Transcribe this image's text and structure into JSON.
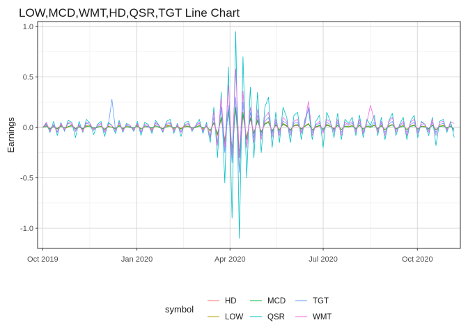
{
  "chart_data": {
    "type": "line",
    "title": "LOW,MCD,WMT,HD,QSR,TGT Line Chart",
    "xlabel": "",
    "ylabel": "Earnings",
    "x_range": [
      "2019-09-26",
      "2020-11-12"
    ],
    "ylim": [
      -1.2,
      1.05
    ],
    "x_ticks": [
      {
        "date": "2019-10-01",
        "label": "Oct 2019"
      },
      {
        "date": "2020-01-01",
        "label": "Jan 2020"
      },
      {
        "date": "2020-04-01",
        "label": "Apr 2020"
      },
      {
        "date": "2020-07-01",
        "label": "Jul 2020"
      },
      {
        "date": "2020-10-01",
        "label": "Oct 2020"
      }
    ],
    "y_ticks": [
      {
        "value": 1.0,
        "label": "1.0"
      },
      {
        "value": 0.5,
        "label": "0.5"
      },
      {
        "value": 0.0,
        "label": "0.0"
      },
      {
        "value": -0.5,
        "label": "-0.5"
      },
      {
        "value": -1.0,
        "label": "-1.0"
      }
    ],
    "grid": true,
    "legend_position": "bottom",
    "legend_title": "symbol",
    "date_start": "2019-10-01",
    "date_end": "2020-11-06",
    "series": [
      {
        "name": "HD",
        "color": "#F8766D",
        "values": [
          0.0,
          0.02,
          -0.01,
          0.01,
          -0.02,
          0.015,
          -0.005,
          0.01,
          0.025,
          -0.015,
          0.005,
          -0.02,
          0.01,
          0.02,
          -0.01,
          0.0,
          0.015,
          -0.025,
          0.01,
          0.005,
          -0.01,
          0.02,
          -0.015,
          0.01,
          0.0,
          -0.005,
          0.015,
          -0.02,
          0.01,
          0.005,
          -0.01,
          0.02,
          0.0,
          -0.015,
          0.01,
          0.025,
          -0.01,
          0.005,
          -0.02,
          0.01,
          0.015,
          -0.005,
          0.0,
          0.02,
          -0.01,
          0.01,
          -0.03,
          0.04,
          -0.06,
          0.08,
          -0.12,
          0.15,
          -0.2,
          0.18,
          -0.25,
          0.12,
          -0.1,
          0.08,
          -0.05,
          0.06,
          -0.04,
          0.03,
          0.05,
          -0.03,
          0.02,
          -0.02,
          0.03,
          0.01,
          -0.02,
          0.015,
          0.02,
          -0.01,
          0.01,
          0.03,
          -0.02,
          0.0,
          0.015,
          -0.015,
          0.02,
          0.01,
          -0.01,
          0.02,
          -0.02,
          0.01,
          0.005,
          0.015,
          -0.01,
          0.02,
          -0.015,
          0.01,
          0.0,
          0.02,
          -0.01,
          0.015,
          -0.02,
          0.01,
          0.025,
          -0.01,
          0.0,
          0.015,
          -0.02,
          0.01,
          0.02,
          -0.015,
          0.01,
          0.005,
          -0.01,
          0.02,
          -0.02,
          0.01,
          0.015,
          -0.005,
          0.01,
          -0.02
        ]
      },
      {
        "name": "LOW",
        "color": "#B79F00",
        "values": [
          0.0,
          0.015,
          -0.02,
          0.01,
          -0.01,
          0.02,
          -0.015,
          0.005,
          0.02,
          -0.01,
          0.01,
          -0.015,
          0.02,
          0.01,
          -0.02,
          0.005,
          0.01,
          -0.02,
          0.015,
          0.0,
          -0.015,
          0.02,
          -0.01,
          0.01,
          0.005,
          -0.01,
          0.02,
          -0.015,
          0.005,
          0.01,
          -0.02,
          0.015,
          0.005,
          -0.01,
          0.02,
          0.015,
          -0.015,
          0.01,
          -0.01,
          0.02,
          0.01,
          -0.015,
          0.005,
          0.02,
          -0.015,
          0.01,
          -0.04,
          0.05,
          -0.08,
          0.1,
          -0.15,
          0.18,
          -0.3,
          0.2,
          -0.42,
          0.15,
          -0.12,
          0.1,
          -0.06,
          0.08,
          -0.05,
          0.04,
          0.06,
          -0.04,
          0.03,
          -0.03,
          0.04,
          0.02,
          -0.03,
          0.02,
          0.03,
          -0.02,
          0.015,
          0.04,
          -0.03,
          0.01,
          0.02,
          -0.02,
          0.03,
          0.015,
          -0.015,
          0.025,
          -0.025,
          0.015,
          0.01,
          0.02,
          -0.015,
          0.025,
          -0.02,
          0.015,
          0.005,
          0.025,
          -0.015,
          0.02,
          -0.025,
          0.015,
          0.03,
          -0.015,
          0.005,
          0.02,
          -0.025,
          0.015,
          0.025,
          -0.02,
          0.015,
          0.01,
          -0.015,
          0.025,
          -0.025,
          0.015,
          0.02,
          -0.01,
          0.015,
          -0.02
        ]
      },
      {
        "name": "MCD",
        "color": "#00BA38",
        "values": [
          0.0,
          0.01,
          -0.01,
          0.005,
          -0.01,
          0.01,
          -0.005,
          0.01,
          0.015,
          -0.01,
          0.005,
          -0.01,
          0.01,
          0.015,
          -0.005,
          0.0,
          0.01,
          -0.015,
          0.005,
          0.005,
          -0.01,
          0.015,
          -0.01,
          0.005,
          0.0,
          -0.005,
          0.01,
          -0.015,
          0.005,
          0.005,
          -0.005,
          0.015,
          0.0,
          -0.01,
          0.005,
          0.015,
          -0.005,
          0.005,
          -0.015,
          0.005,
          0.01,
          -0.005,
          0.0,
          0.015,
          -0.005,
          0.005,
          -0.03,
          0.05,
          -0.07,
          0.1,
          -0.14,
          0.16,
          -0.22,
          0.2,
          -0.3,
          0.14,
          -0.12,
          0.09,
          -0.06,
          0.07,
          -0.05,
          0.035,
          0.05,
          -0.035,
          0.025,
          -0.025,
          0.035,
          0.015,
          -0.025,
          0.02,
          0.025,
          -0.015,
          0.01,
          0.035,
          -0.025,
          0.005,
          0.02,
          -0.02,
          0.025,
          0.01,
          -0.015,
          0.02,
          -0.02,
          0.01,
          0.005,
          0.015,
          -0.01,
          0.02,
          -0.015,
          0.01,
          0.0,
          0.02,
          -0.01,
          0.015,
          -0.02,
          0.01,
          0.025,
          -0.01,
          0.0,
          0.015,
          -0.02,
          0.01,
          0.02,
          -0.015,
          0.01,
          0.005,
          -0.01,
          0.02,
          -0.02,
          0.01,
          0.015,
          -0.005,
          0.01,
          -0.015
        ]
      },
      {
        "name": "QSR",
        "color": "#00BFC4",
        "values": [
          0.0,
          0.04,
          -0.05,
          0.06,
          -0.08,
          0.05,
          -0.04,
          0.07,
          0.05,
          -0.1,
          0.06,
          -0.05,
          0.08,
          0.04,
          -0.07,
          0.03,
          0.06,
          -0.09,
          0.05,
          0.02,
          -0.06,
          0.07,
          -0.05,
          0.04,
          0.02,
          -0.04,
          0.06,
          -0.08,
          0.05,
          0.03,
          -0.06,
          0.07,
          0.02,
          -0.05,
          0.06,
          0.08,
          -0.06,
          0.04,
          -0.09,
          0.05,
          0.06,
          -0.04,
          0.02,
          0.08,
          -0.06,
          0.05,
          -0.15,
          0.2,
          -0.3,
          0.35,
          -0.55,
          0.6,
          -0.9,
          0.95,
          -1.1,
          0.7,
          -0.5,
          0.4,
          -0.3,
          0.35,
          -0.25,
          0.2,
          0.3,
          -0.2,
          0.15,
          -0.15,
          0.2,
          0.1,
          -0.15,
          0.12,
          0.15,
          -0.12,
          0.08,
          0.18,
          -0.12,
          0.06,
          0.12,
          -0.2,
          0.15,
          0.06,
          -0.1,
          0.14,
          -0.12,
          0.08,
          0.04,
          0.1,
          -0.08,
          0.12,
          -0.1,
          0.08,
          0.02,
          0.12,
          -0.08,
          0.1,
          -0.12,
          0.06,
          0.14,
          -0.08,
          0.03,
          0.1,
          -0.12,
          0.06,
          0.12,
          -0.1,
          0.06,
          0.03,
          -0.08,
          0.1,
          -0.18,
          0.06,
          0.08,
          -0.05,
          0.06,
          -0.1
        ]
      },
      {
        "name": "TGT",
        "color": "#619CFF",
        "values": [
          0.0,
          0.03,
          -0.03,
          0.02,
          -0.04,
          0.03,
          -0.02,
          0.04,
          0.03,
          -0.03,
          0.02,
          -0.03,
          0.04,
          0.03,
          -0.02,
          0.01,
          0.03,
          -0.04,
          0.02,
          0.28,
          -0.03,
          0.04,
          -0.03,
          0.02,
          0.01,
          -0.02,
          0.03,
          -0.04,
          0.02,
          0.01,
          -0.03,
          0.04,
          0.01,
          -0.03,
          0.03,
          0.04,
          -0.03,
          0.02,
          -0.04,
          0.02,
          0.03,
          -0.02,
          0.01,
          0.04,
          -0.03,
          0.02,
          -0.08,
          0.1,
          -0.15,
          0.2,
          -0.25,
          0.22,
          -0.35,
          0.3,
          -0.45,
          0.25,
          -0.2,
          0.15,
          -0.1,
          0.12,
          -0.08,
          0.06,
          0.1,
          -0.06,
          0.05,
          -0.05,
          0.06,
          0.04,
          -0.05,
          0.04,
          0.05,
          -0.04,
          0.03,
          0.2,
          -0.05,
          0.02,
          0.04,
          -0.04,
          0.05,
          0.03,
          -0.03,
          0.05,
          -0.05,
          0.03,
          0.02,
          0.04,
          -0.03,
          0.05,
          -0.04,
          0.03,
          0.01,
          0.05,
          -0.03,
          0.04,
          -0.05,
          0.03,
          0.06,
          -0.03,
          0.01,
          0.04,
          -0.05,
          0.03,
          0.05,
          -0.04,
          0.03,
          0.02,
          -0.03,
          0.05,
          -0.05,
          0.03,
          0.04,
          -0.02,
          0.03,
          -0.04
        ]
      },
      {
        "name": "WMT",
        "color": "#F564E3",
        "values": [
          0.0,
          0.05,
          -0.04,
          0.03,
          -0.05,
          0.04,
          -0.03,
          0.05,
          0.04,
          -0.04,
          0.03,
          -0.04,
          0.05,
          0.04,
          -0.03,
          0.02,
          0.04,
          -0.05,
          0.03,
          0.02,
          -0.04,
          0.05,
          -0.04,
          0.03,
          0.02,
          -0.03,
          0.04,
          -0.05,
          0.03,
          0.02,
          -0.04,
          0.05,
          0.02,
          -0.04,
          0.04,
          0.05,
          -0.04,
          0.03,
          -0.05,
          0.03,
          0.04,
          -0.03,
          0.02,
          0.05,
          -0.04,
          0.03,
          -0.1,
          0.15,
          -0.18,
          0.3,
          -0.2,
          0.42,
          -0.28,
          0.58,
          -0.3,
          0.36,
          -0.2,
          0.2,
          -0.15,
          0.18,
          -0.12,
          0.1,
          0.15,
          -0.1,
          0.08,
          -0.08,
          0.1,
          0.06,
          -0.08,
          0.06,
          0.08,
          -0.06,
          0.05,
          0.26,
          -0.08,
          0.03,
          0.06,
          -0.06,
          0.08,
          0.05,
          -0.05,
          0.08,
          -0.08,
          0.05,
          0.03,
          0.06,
          -0.05,
          0.08,
          -0.06,
          0.05,
          0.22,
          0.08,
          -0.05,
          0.06,
          -0.08,
          0.05,
          0.1,
          -0.05,
          0.02,
          0.06,
          -0.08,
          0.05,
          0.08,
          -0.06,
          0.05,
          0.03,
          -0.05,
          0.08,
          -0.08,
          0.05,
          0.06,
          -0.03,
          0.05,
          0.04
        ]
      }
    ]
  }
}
